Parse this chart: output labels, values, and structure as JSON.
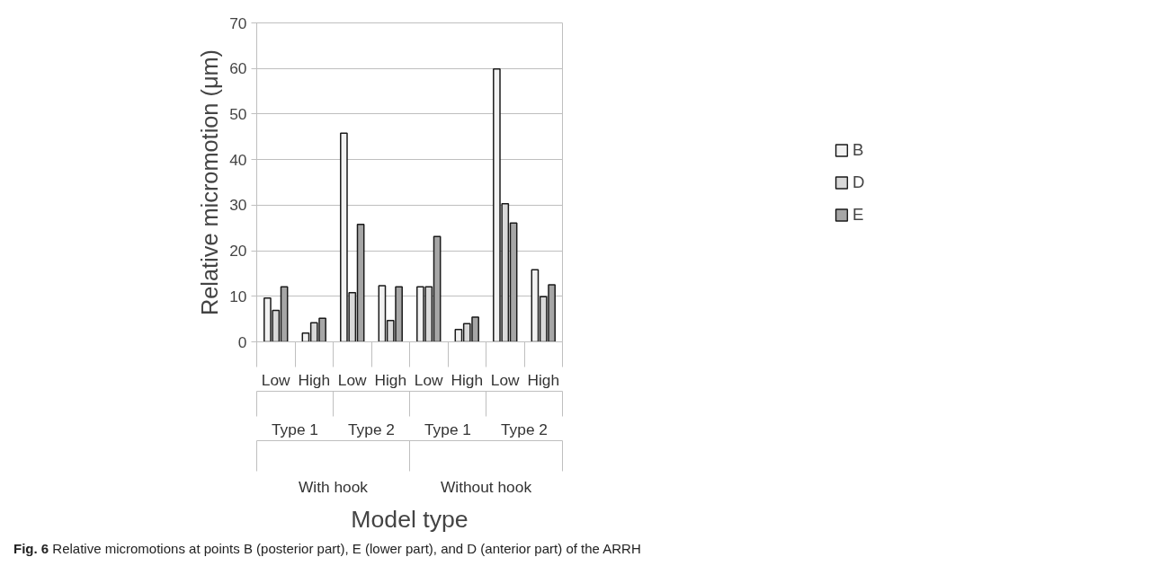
{
  "chart_data": {
    "type": "bar",
    "xlabel": "Model type",
    "ylabel": "Relative micromotion (μm)",
    "categories": [
      "Low",
      "High",
      "Low",
      "High",
      "Low",
      "High",
      "Low",
      "High"
    ],
    "series": [
      {
        "name": "B",
        "color": "#f2f2f2",
        "values": [
          9.6,
          1.9,
          45.8,
          12.3,
          12.1,
          2.7,
          59.9,
          15.8
        ]
      },
      {
        "name": "D",
        "color": "#d9d9d9",
        "values": [
          6.9,
          4.2,
          10.8,
          4.7,
          12.1,
          4.0,
          30.3,
          9.9
        ]
      },
      {
        "name": "E",
        "color": "#a6a6a6",
        "values": [
          12.1,
          5.2,
          25.8,
          12.1,
          23.1,
          5.4,
          26.1,
          12.5
        ]
      }
    ],
    "ylim": [
      0,
      70
    ],
    "yticks": [
      0,
      10,
      20,
      30,
      40,
      50,
      60,
      70
    ],
    "grid": "y",
    "legend": "right",
    "annotations": [
      "Type 1",
      "Type 2",
      "Type 1",
      "Type 2",
      "With hook",
      "Without hook",
      "Fig. 6 Relative micromotions at points B (posterior part), E (lower part), and D (anterior part) of the ARRH"
    ]
  }
}
